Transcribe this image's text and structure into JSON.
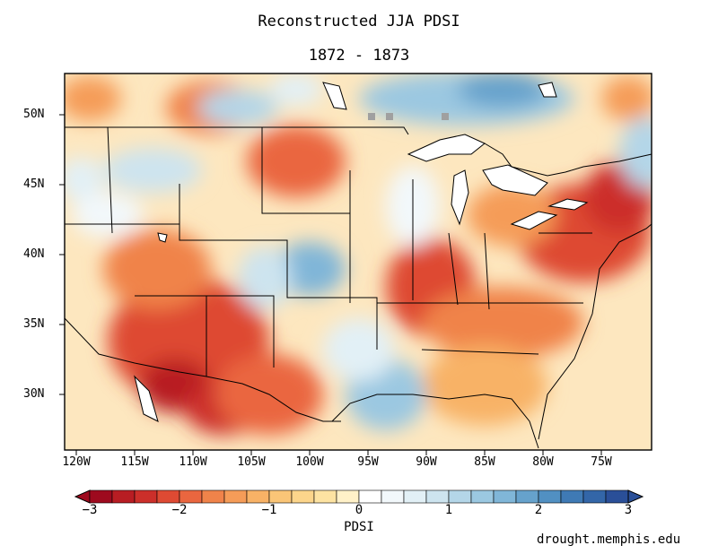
{
  "title": "Reconstructed JJA PDSI",
  "subtitle": "1872 - 1873",
  "latitude_labels": [
    "50N",
    "45N",
    "40N",
    "35N",
    "30N"
  ],
  "longitude_labels": [
    "120W",
    "115W",
    "110W",
    "105W",
    "100W",
    "95W",
    "90W",
    "85W",
    "80W",
    "75W"
  ],
  "colorbar": {
    "label": "PDSI",
    "tick_labels": [
      "−3",
      "−2",
      "−1",
      "0",
      "1",
      "2",
      "3"
    ],
    "range": [
      -3,
      3
    ],
    "colors": [
      "#9e0a1e",
      "#b81d23",
      "#cc2f2a",
      "#de4a33",
      "#ea663f",
      "#f0834a",
      "#f59c58",
      "#f8b266",
      "#fac577",
      "#fcd58b",
      "#fde3a2",
      "#fff1c8",
      "#ffffff",
      "#f2f8fb",
      "#e2f0f6",
      "#cde4ef",
      "#b4d6e8",
      "#9bc8e1",
      "#80b6d8",
      "#66a2cc",
      "#5190c2",
      "#3f7ab5",
      "#3366a8",
      "#2a4f98"
    ]
  },
  "credit": "drought.memphis.edu"
}
